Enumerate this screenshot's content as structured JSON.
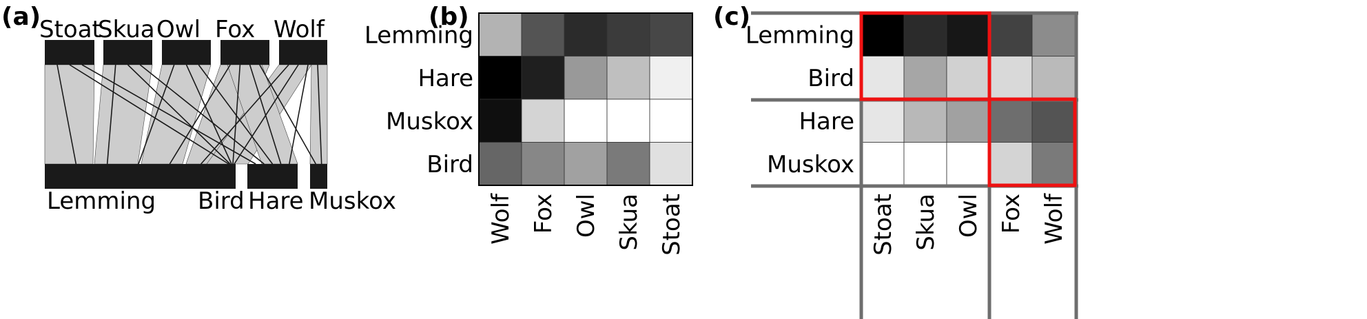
{
  "panels": [
    {
      "id": "a",
      "label": "(a)",
      "chart_data": {
        "type": "bipartite",
        "top_nodes": [
          "Stoat",
          "Skua",
          "Owl",
          "Fox",
          "Wolf"
        ],
        "bottom_nodes": [
          "Lemming",
          "Bird",
          "Hare",
          "Muskox"
        ],
        "links": [
          {
            "from": "Stoat",
            "to": "Lemming"
          },
          {
            "from": "Stoat",
            "to": "Bird"
          },
          {
            "from": "Stoat",
            "to": "Hare"
          },
          {
            "from": "Skua",
            "to": "Lemming"
          },
          {
            "from": "Skua",
            "to": "Bird"
          },
          {
            "from": "Skua",
            "to": "Hare"
          },
          {
            "from": "Owl",
            "to": "Lemming"
          },
          {
            "from": "Owl",
            "to": "Bird"
          },
          {
            "from": "Owl",
            "to": "Hare"
          },
          {
            "from": "Fox",
            "to": "Lemming"
          },
          {
            "from": "Fox",
            "to": "Bird"
          },
          {
            "from": "Fox",
            "to": "Hare"
          },
          {
            "from": "Fox",
            "to": "Muskox"
          },
          {
            "from": "Wolf",
            "to": "Lemming"
          },
          {
            "from": "Wolf",
            "to": "Bird"
          },
          {
            "from": "Wolf",
            "to": "Hare"
          },
          {
            "from": "Wolf",
            "to": "Muskox"
          }
        ]
      }
    },
    {
      "id": "b",
      "label": "(b)",
      "chart_data": {
        "type": "heatmap",
        "rows": [
          "Lemming",
          "Hare",
          "Muskox",
          "Bird"
        ],
        "columns": [
          "Wolf",
          "Fox",
          "Owl",
          "Skua",
          "Stoat"
        ],
        "values": [
          [
            0.3,
            0.67,
            0.83,
            0.77,
            0.72
          ],
          [
            1.0,
            0.88,
            0.4,
            0.25,
            0.06
          ],
          [
            0.94,
            0.17,
            0.0,
            0.0,
            0.0
          ],
          [
            0.6,
            0.47,
            0.37,
            0.52,
            0.12
          ]
        ],
        "colormap": "white-to-black"
      }
    },
    {
      "id": "c",
      "label": "(c)",
      "chart_data": {
        "type": "heatmap",
        "rows": [
          "Lemming",
          "Bird",
          "Hare",
          "Muskox"
        ],
        "columns": [
          "Stoat",
          "Skua",
          "Owl",
          "Fox",
          "Wolf"
        ],
        "values": [
          [
            1.0,
            0.83,
            0.91,
            0.74,
            0.45
          ],
          [
            0.1,
            0.35,
            0.18,
            0.15,
            0.27
          ],
          [
            0.1,
            0.28,
            0.37,
            0.57,
            0.67
          ],
          [
            0.0,
            0.0,
            0.0,
            0.17,
            0.52
          ]
        ],
        "colormap": "white-to-black",
        "modules": [
          {
            "rows": [
              "Lemming",
              "Bird"
            ],
            "columns": [
              "Stoat",
              "Skua",
              "Owl"
            ]
          },
          {
            "rows": [
              "Hare",
              "Muskox"
            ],
            "columns": [
              "Fox",
              "Wolf"
            ]
          }
        ],
        "module_color": "#ee1111",
        "separator_color": "#6e6e6e"
      }
    }
  ]
}
